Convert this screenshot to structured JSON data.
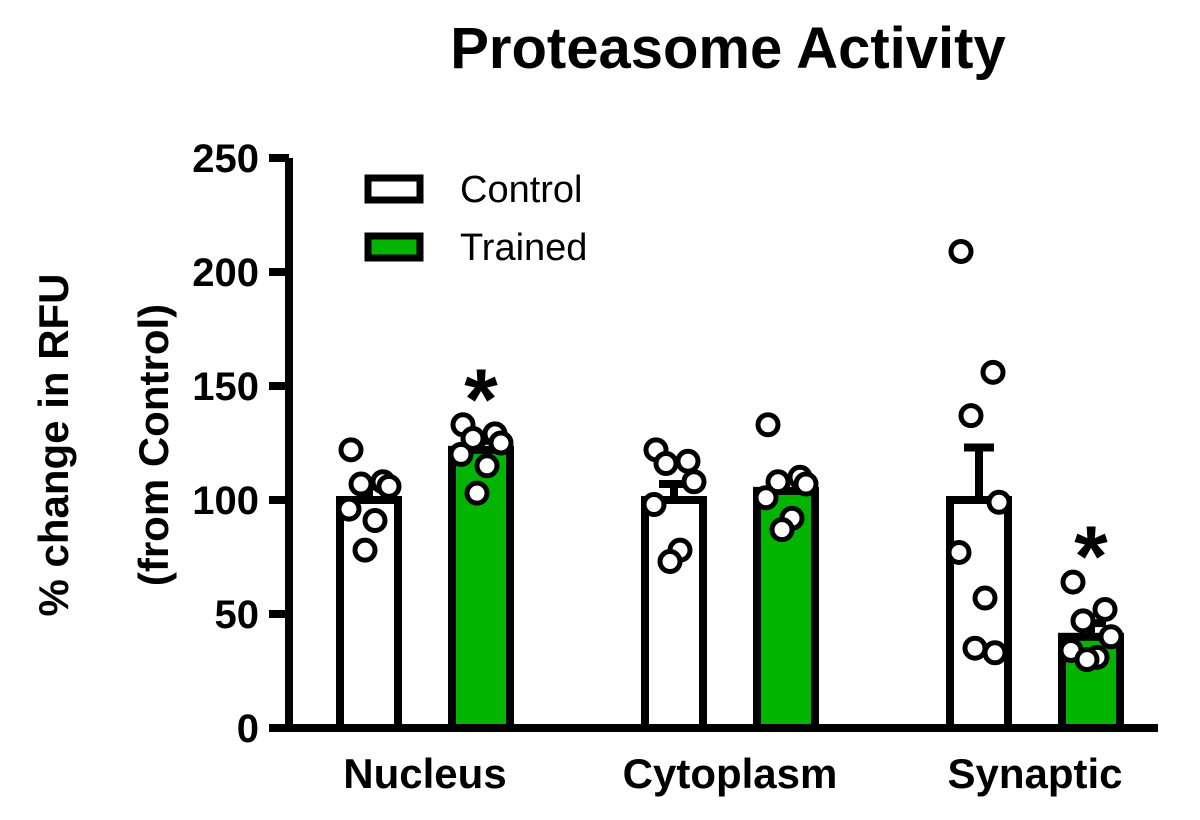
{
  "chart_data": {
    "type": "bar",
    "title": "Proteasome Activity",
    "ylabel_lines": [
      "% change in RFU",
      "(from Control)"
    ],
    "xlabel": "",
    "ylim": [
      0,
      250
    ],
    "yticks": [
      0,
      50,
      100,
      150,
      200,
      250
    ],
    "categories": [
      "Nucleus",
      "Cytoplasm",
      "Synaptic"
    ],
    "series": [
      {
        "name": "Control",
        "color": "#ffffff",
        "values": [
          100,
          100,
          100
        ],
        "errors": [
          6,
          7,
          23
        ],
        "points": [
          [
            122,
            108,
            107,
            106,
            96,
            91,
            78
          ],
          [
            122,
            117,
            116,
            108,
            98,
            78,
            73
          ],
          [
            209,
            156,
            137,
            99,
            77,
            57,
            35,
            33
          ]
        ],
        "significant": [
          false,
          false,
          false
        ]
      },
      {
        "name": "Trained",
        "color": "#00b400",
        "values": [
          122,
          104,
          40
        ],
        "errors": [
          4,
          5,
          6
        ],
        "points": [
          [
            133,
            129,
            127,
            125,
            120,
            115,
            103
          ],
          [
            133,
            110,
            108,
            107,
            101,
            92,
            87
          ],
          [
            64,
            52,
            47,
            40,
            34,
            31,
            30
          ]
        ],
        "significant": [
          true,
          false,
          true
        ]
      }
    ],
    "significance_symbol": "*",
    "legend": [
      {
        "label": "Control",
        "fill": "#ffffff"
      },
      {
        "label": "Trained",
        "fill": "#00b400"
      }
    ]
  }
}
